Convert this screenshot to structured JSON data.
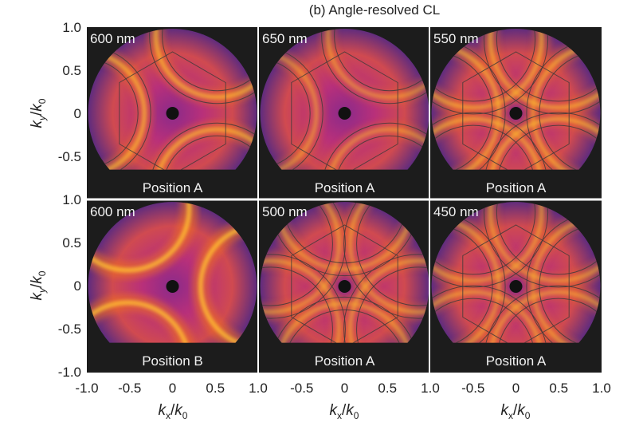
{
  "chart_data": {
    "type": "heatmap",
    "title": "(b) Angle-resolved CL",
    "xlabel": {
      "main": "k",
      "sub": "x",
      "sep": "/",
      "main2": "k",
      "sub2": "0"
    },
    "ylabel": {
      "main": "k",
      "sub": "y",
      "sep": "/",
      "main2": "k",
      "sub2": "0"
    },
    "xlim": [
      -1.0,
      1.0
    ],
    "ylim": [
      -1.0,
      1.0
    ],
    "x_ticks": [
      "-1.0",
      "-0.5",
      "0",
      "0.5",
      "1.0"
    ],
    "x_ticks_shared": [
      "-0.5",
      "0",
      "0.5",
      "1.0"
    ],
    "y_ticks_top": [
      "1.0",
      "0.5",
      "0",
      "-0.5"
    ],
    "y_ticks_bottom": [
      "1.0",
      "0.5",
      "0",
      "-0.5",
      "-1.0"
    ],
    "colormap": [
      "#3a1a5a",
      "#7a2a8a",
      "#c8385a",
      "#f06a20",
      "#ffd040"
    ],
    "panels": [
      {
        "wavelength": "600 nm",
        "position": "Position A",
        "row": 0,
        "col": 0,
        "symmetry": 3,
        "rot": 180,
        "overlay": true,
        "glow": 0.8
      },
      {
        "wavelength": "650 nm",
        "position": "Position A",
        "row": 0,
        "col": 1,
        "symmetry": 3,
        "rot": 180,
        "overlay": true,
        "glow": 0.55
      },
      {
        "wavelength": "550 nm",
        "position": "Position A",
        "row": 0,
        "col": 2,
        "symmetry": 6,
        "rot": 0,
        "overlay": true,
        "glow": 0.7
      },
      {
        "wavelength": "600 nm",
        "position": "Position B",
        "row": 1,
        "col": 0,
        "symmetry": 3,
        "rot": 0,
        "overlay": false,
        "glow": 1.0
      },
      {
        "wavelength": "500 nm",
        "position": "Position A",
        "row": 1,
        "col": 1,
        "symmetry": 6,
        "rot": 30,
        "overlay": true,
        "glow": 0.6
      },
      {
        "wavelength": "450 nm",
        "position": "Position A",
        "row": 1,
        "col": 2,
        "symmetry": 6,
        "rot": 0,
        "overlay": true,
        "glow": 0.6
      }
    ]
  }
}
